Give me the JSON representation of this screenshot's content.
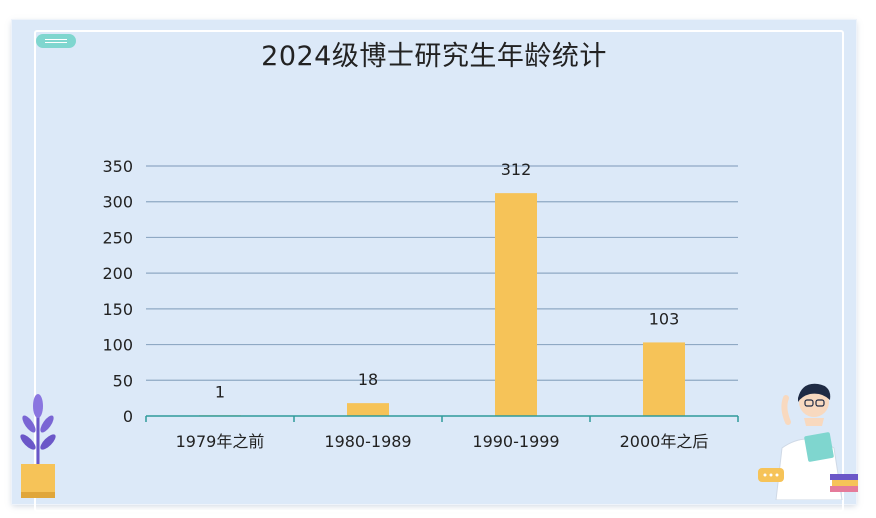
{
  "chart_data": {
    "type": "bar",
    "title": "2024级博士研究生年龄统计",
    "categories": [
      "1979年之前",
      "1980-1989",
      "1990-1999",
      "2000年之后"
    ],
    "values": [
      1,
      18,
      312,
      103
    ],
    "data_labels": [
      "1",
      "18",
      "312",
      "103"
    ],
    "ylim": [
      0,
      350
    ],
    "yticks": [
      0,
      50,
      100,
      150,
      200,
      250,
      300,
      350
    ],
    "grid": true,
    "legend": "none",
    "xlabel": "",
    "ylabel": ""
  },
  "colors": {
    "bar": "#f6c358",
    "grid": "#8fa9c4",
    "axis": "#2f9a9a",
    "background": "#dce9f8"
  },
  "decorations": [
    "plant-icon",
    "teacher-illustration",
    "speech-bubble-icon",
    "books-icon"
  ]
}
